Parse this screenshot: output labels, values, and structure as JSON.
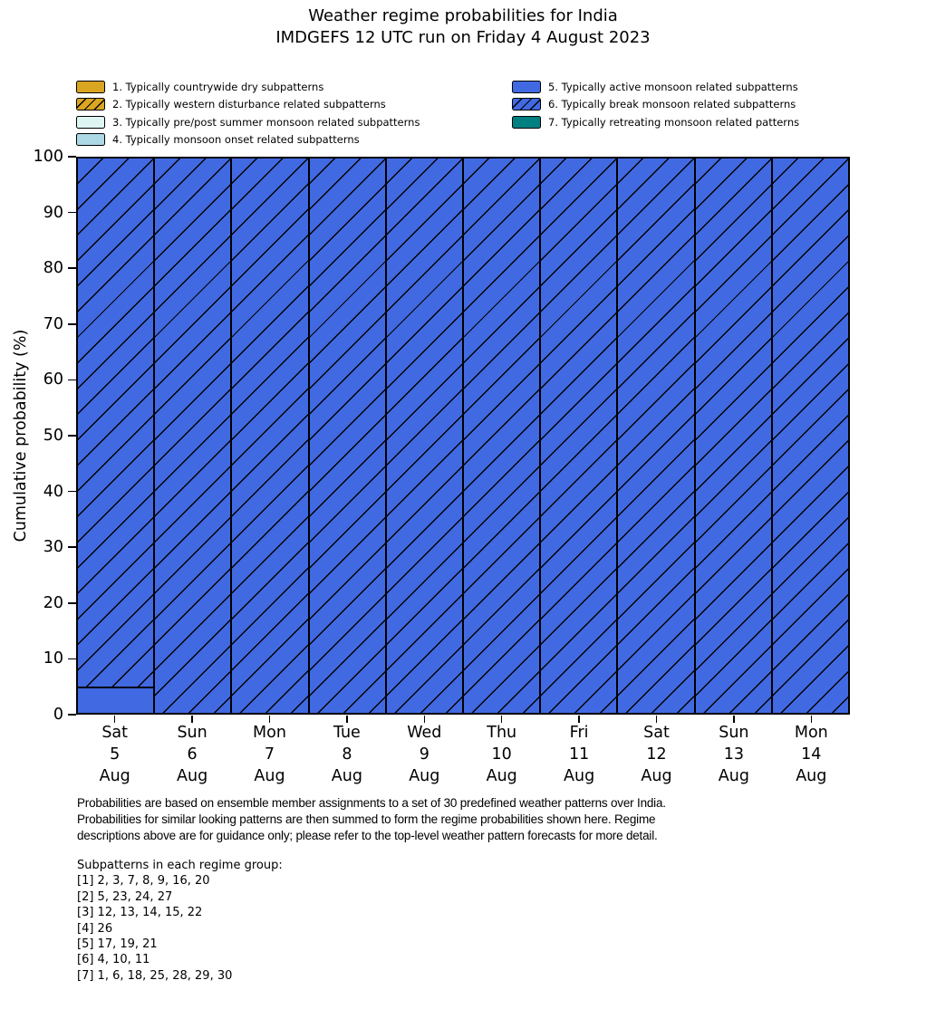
{
  "title": {
    "line1": "Weather regime probabilities for India",
    "line2": "IMDGEFS 12 UTC run on Friday 4 August 2023"
  },
  "colors": {
    "bar_blue": "#4169E1",
    "goldenrod": "#DAA520",
    "light_cyan": "#DFF5F4",
    "light_blue": "#ADD8E6",
    "teal": "#008080",
    "edge": "#000000",
    "background": "#FFFFFF"
  },
  "legend": {
    "items": [
      {
        "label": "1. Typically countrywide dry subpatterns",
        "color": "#DAA520",
        "hatch": false
      },
      {
        "label": "2. Typically western disturbance related subpatterns",
        "color": "#DAA520",
        "hatch": true
      },
      {
        "label": "3. Typically pre/post summer monsoon related subpatterns",
        "color": "#DFF5F4",
        "hatch": false
      },
      {
        "label": "4. Typically monsoon onset related subpatterns",
        "color": "#ADD8E6",
        "hatch": false
      },
      {
        "label": "5. Typically active monsoon related subpatterns",
        "color": "#4169E1",
        "hatch": false
      },
      {
        "label": "6. Typically break monsoon related subpatterns",
        "color": "#4169E1",
        "hatch": true
      },
      {
        "label": "7. Typically retreating monsoon related patterns",
        "color": "#008080",
        "hatch": false
      }
    ]
  },
  "chart_data": {
    "type": "bar",
    "stacked": true,
    "title": "Weather regime probabilities for India — IMDGEFS 12 UTC run on Friday 4 August 2023",
    "xlabel": "",
    "ylabel": "Cumulative probability (%)",
    "ylim": [
      0,
      100
    ],
    "yticks": [
      0,
      10,
      20,
      30,
      40,
      50,
      60,
      70,
      80,
      90,
      100
    ],
    "grid": false,
    "legend_position": "top",
    "categories": [
      {
        "day": "Sat",
        "date": "5",
        "month": "Aug"
      },
      {
        "day": "Sun",
        "date": "6",
        "month": "Aug"
      },
      {
        "day": "Mon",
        "date": "7",
        "month": "Aug"
      },
      {
        "day": "Tue",
        "date": "8",
        "month": "Aug"
      },
      {
        "day": "Wed",
        "date": "9",
        "month": "Aug"
      },
      {
        "day": "Thu",
        "date": "10",
        "month": "Aug"
      },
      {
        "day": "Fri",
        "date": "11",
        "month": "Aug"
      },
      {
        "day": "Sat",
        "date": "12",
        "month": "Aug"
      },
      {
        "day": "Sun",
        "date": "13",
        "month": "Aug"
      },
      {
        "day": "Mon",
        "date": "14",
        "month": "Aug"
      }
    ],
    "series": [
      {
        "name": "1. Typically countrywide dry subpatterns",
        "color": "#DAA520",
        "hatch": false,
        "values": [
          0,
          0,
          0,
          0,
          0,
          0,
          0,
          0,
          0,
          0
        ]
      },
      {
        "name": "2. Typically western disturbance related subpatterns",
        "color": "#DAA520",
        "hatch": true,
        "values": [
          0,
          0,
          0,
          0,
          0,
          0,
          0,
          0,
          0,
          0
        ]
      },
      {
        "name": "3. Typically pre/post summer monsoon related subpatterns",
        "color": "#DFF5F4",
        "hatch": false,
        "values": [
          0,
          0,
          0,
          0,
          0,
          0,
          0,
          0,
          0,
          0
        ]
      },
      {
        "name": "4. Typically monsoon onset related subpatterns",
        "color": "#ADD8E6",
        "hatch": false,
        "values": [
          0,
          0,
          0,
          0,
          0,
          0,
          0,
          0,
          0,
          0
        ]
      },
      {
        "name": "5. Typically active monsoon related subpatterns",
        "color": "#4169E1",
        "hatch": false,
        "values": [
          4.8,
          0,
          0,
          0,
          0,
          0,
          0,
          0,
          0,
          0
        ]
      },
      {
        "name": "6. Typically break monsoon related subpatterns",
        "color": "#4169E1",
        "hatch": true,
        "values": [
          95.2,
          100,
          100,
          100,
          100,
          100,
          100,
          100,
          100,
          100
        ]
      },
      {
        "name": "7. Typically retreating monsoon related patterns",
        "color": "#008080",
        "hatch": false,
        "values": [
          0,
          0,
          0,
          0,
          0,
          0,
          0,
          0,
          0,
          0
        ]
      }
    ]
  },
  "footnote": {
    "lines": [
      "Probabilities are based on ensemble member assignments to a set of 30 predefined weather patterns over India.",
      "Probabilities for similar looking patterns are then summed to form the regime probabilities shown here. Regime",
      "descriptions above are for guidance only; please refer to the top-level weather pattern forecasts for more detail."
    ]
  },
  "subpatterns": {
    "heading": "Subpatterns in each regime group:",
    "lines": [
      "[1] 2, 3, 7, 8, 9, 16, 20",
      "[2] 5, 23, 24, 27",
      "[3] 12, 13, 14, 15, 22",
      "[4] 26",
      "[5] 17, 19, 21",
      "[6] 4, 10, 11",
      "[7] 1, 6, 18, 25, 28, 29, 30"
    ]
  }
}
